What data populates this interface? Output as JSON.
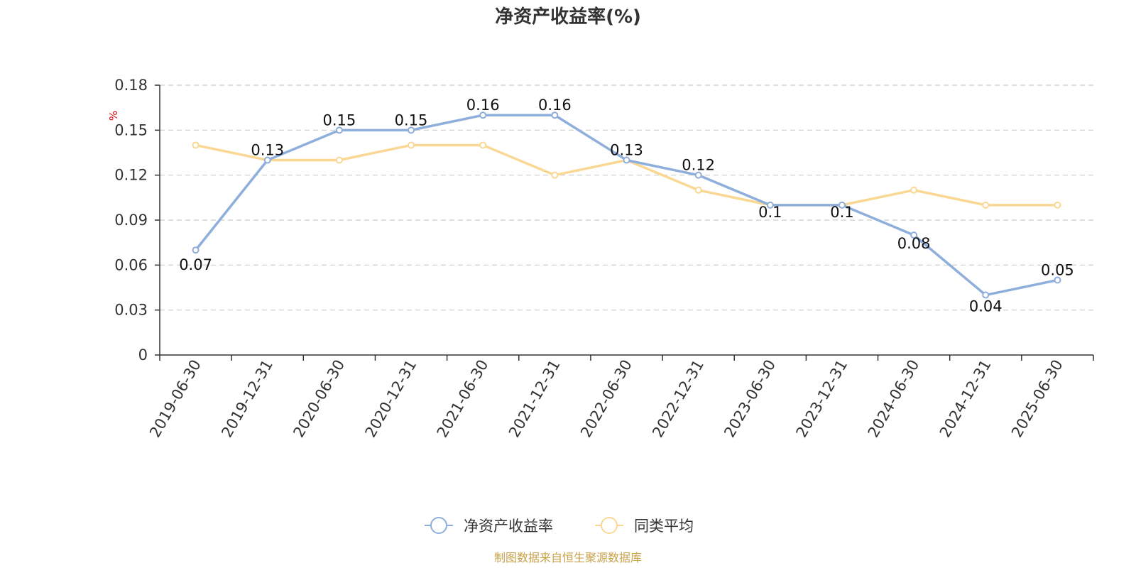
{
  "chart_data": {
    "type": "line",
    "title": "净资产收益率(%)",
    "ylabel": "%",
    "x": [
      "2019-06-30",
      "2019-12-31",
      "2020-06-30",
      "2020-12-31",
      "2021-06-30",
      "2021-12-31",
      "2022-06-30",
      "2022-12-31",
      "2023-06-30",
      "2023-12-31",
      "2024-06-30",
      "2024-12-31",
      "2025-06-30"
    ],
    "ylim": [
      0,
      0.18
    ],
    "yticks": [
      "0",
      "0.03",
      "0.06",
      "0.09",
      "0.12",
      "0.15",
      "0.18"
    ],
    "grid": true,
    "legend_position": "bottom",
    "series": [
      {
        "name": "净资产收益率",
        "color": "#8eaedb",
        "values": [
          0.07,
          0.13,
          0.15,
          0.15,
          0.16,
          0.16,
          0.13,
          0.12,
          0.1,
          0.1,
          0.08,
          0.04,
          0.05
        ],
        "labels": [
          "0.07",
          "0.13",
          "0.15",
          "0.15",
          "0.16",
          "0.16",
          "0.13",
          "0.12",
          "0.1",
          "0.1",
          "0.08",
          "0.04",
          "0.05"
        ]
      },
      {
        "name": "同类平均",
        "color": "#fad894",
        "values": [
          0.14,
          0.13,
          0.13,
          0.14,
          0.14,
          0.12,
          0.13,
          0.11,
          0.1,
          0.1,
          0.11,
          0.1,
          0.1
        ]
      }
    ],
    "source": "制图数据来自恒生聚源数据库"
  }
}
